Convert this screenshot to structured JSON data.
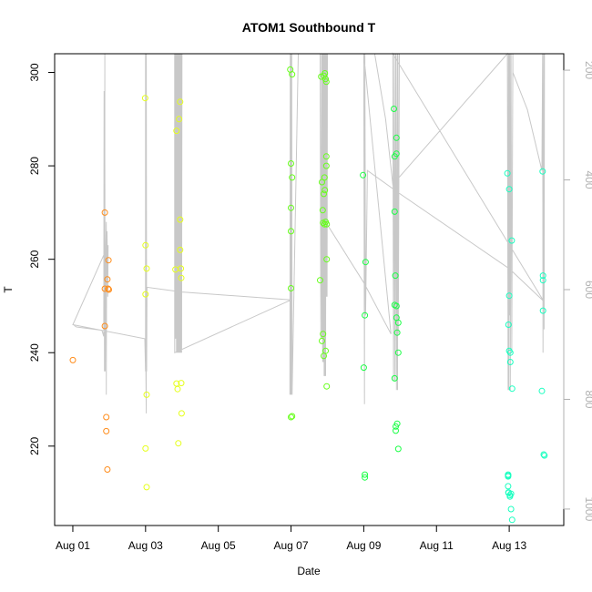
{
  "chart_data": {
    "type": "scatter",
    "title": "ATOM1 Southbound T",
    "xlabel": "Date",
    "ylabel": "T",
    "x_unit": "day",
    "x_reference_label": "Aug 01",
    "xlim": [
      -0.5,
      13.5
    ],
    "ylim": [
      203,
      304
    ],
    "x_ticks": [
      {
        "value": 0,
        "label": "Aug 01"
      },
      {
        "value": 2,
        "label": "Aug 03"
      },
      {
        "value": 4,
        "label": "Aug 05"
      },
      {
        "value": 6,
        "label": "Aug 07"
      },
      {
        "value": 8,
        "label": "Aug 09"
      },
      {
        "value": 10,
        "label": "Aug 11"
      },
      {
        "value": 12,
        "label": "Aug 13"
      }
    ],
    "y_ticks": [
      220,
      240,
      260,
      280,
      300
    ],
    "y2_lim": [
      1030,
      170
    ],
    "y2_ticks": [
      200,
      400,
      600,
      800,
      1000
    ],
    "y2_color": "#b0b0b0",
    "line_color": "#c8c8c8",
    "grid": false,
    "series": [
      {
        "color": "#ff8c1a",
        "points": [
          [
            0,
            238.4
          ],
          [
            0.88,
            270
          ],
          [
            0.88,
            253.7
          ],
          [
            0.88,
            245.7
          ],
          [
            0.92,
            226.2
          ],
          [
            0.92,
            223.2
          ],
          [
            0.95,
            215
          ],
          [
            0.95,
            255.7
          ],
          [
            0.97,
            253.7
          ],
          [
            0.98,
            259.8
          ],
          [
            0.99,
            253.5
          ]
        ]
      },
      {
        "color": "#e6ff1a",
        "points": [
          [
            1.99,
            294.5
          ],
          [
            2.0,
            263
          ],
          [
            2.0,
            252.5
          ],
          [
            2.03,
            258
          ],
          [
            2.03,
            231
          ],
          [
            2.0,
            219.5
          ],
          [
            2.03,
            211.2
          ],
          [
            2.82,
            257.8
          ],
          [
            2.85,
            287.5
          ],
          [
            2.85,
            233.4
          ],
          [
            2.88,
            232.2
          ],
          [
            2.9,
            220.6
          ],
          [
            2.92,
            290
          ],
          [
            2.95,
            293.7
          ],
          [
            2.95,
            268.5
          ],
          [
            2.95,
            262
          ],
          [
            2.97,
            258
          ],
          [
            2.98,
            256
          ],
          [
            2.98,
            233.5
          ],
          [
            2.99,
            227
          ]
        ]
      },
      {
        "color": "#66ff1a",
        "points": [
          [
            5.98,
            300.6
          ],
          [
            6.0,
            280.5
          ],
          [
            6.0,
            271
          ],
          [
            6.0,
            266
          ],
          [
            6.0,
            253.8
          ],
          [
            6.03,
            299.6
          ],
          [
            6.03,
            277.5
          ],
          [
            6.03,
            226.4
          ],
          [
            6.0,
            226.2
          ],
          [
            6.8,
            255.5
          ],
          [
            6.83,
            299.1
          ],
          [
            6.85,
            276.5
          ],
          [
            6.85,
            242.5
          ],
          [
            6.87,
            270.5
          ],
          [
            6.88,
            244
          ],
          [
            6.88,
            267.8
          ],
          [
            6.9,
            274
          ],
          [
            6.9,
            239.3
          ],
          [
            6.9,
            299.3
          ],
          [
            6.92,
            277.5
          ],
          [
            6.92,
            267.5
          ],
          [
            6.93,
            299.8
          ],
          [
            6.93,
            274.8
          ],
          [
            6.95,
            298.6
          ],
          [
            6.95,
            268
          ],
          [
            6.95,
            240.4
          ],
          [
            6.97,
            298
          ],
          [
            6.97,
            282
          ],
          [
            6.97,
            280
          ],
          [
            6.98,
            267.5
          ],
          [
            6.98,
            260
          ],
          [
            6.98,
            232.8
          ]
        ]
      },
      {
        "color": "#1aff45",
        "points": [
          [
            7.98,
            278
          ],
          [
            8.0,
            236.8
          ],
          [
            8.03,
            248
          ],
          [
            8.03,
            213.9
          ],
          [
            8.03,
            213.3
          ],
          [
            8.05,
            259.4
          ],
          [
            8.83,
            292.2
          ],
          [
            8.85,
            282
          ],
          [
            8.85,
            270.2
          ],
          [
            8.87,
            256.5
          ],
          [
            8.85,
            250.2
          ],
          [
            8.85,
            234.5
          ],
          [
            8.9,
            286
          ],
          [
            8.9,
            282.6
          ],
          [
            8.9,
            250
          ],
          [
            8.9,
            247.5
          ],
          [
            8.92,
            244.3
          ],
          [
            8.88,
            224.2
          ],
          [
            8.88,
            223.3
          ],
          [
            8.92,
            224.8
          ],
          [
            8.95,
            246.4
          ],
          [
            8.95,
            240
          ],
          [
            8.95,
            219.4
          ]
        ]
      },
      {
        "color": "#1affc0",
        "points": [
          [
            11.95,
            278.4
          ],
          [
            11.97,
            213.7
          ],
          [
            11.97,
            213.5
          ],
          [
            11.97,
            211.4
          ],
          [
            11.98,
            210.1
          ],
          [
            11.98,
            210
          ],
          [
            11.98,
            246
          ],
          [
            12.0,
            275
          ],
          [
            12.0,
            252.2
          ],
          [
            12.0,
            240.4
          ],
          [
            12.02,
            209.5
          ],
          [
            12.02,
            209.2
          ],
          [
            12.03,
            240
          ],
          [
            12.03,
            238
          ],
          [
            12.05,
            209.8
          ],
          [
            12.05,
            206.5
          ],
          [
            12.07,
            264
          ],
          [
            12.08,
            204.2
          ],
          [
            12.08,
            232.3
          ],
          [
            11.97,
            213.9
          ],
          [
            12.9,
            231.8
          ],
          [
            12.92,
            278.8
          ],
          [
            12.93,
            256.5
          ],
          [
            12.93,
            255.5
          ],
          [
            12.93,
            249
          ],
          [
            12.95,
            218.2
          ],
          [
            12.97,
            218
          ]
        ]
      }
    ],
    "line_path": [
      [
        0.0,
        246
      ],
      [
        0.1,
        245.5
      ],
      [
        0.8,
        244.8
      ],
      [
        0.85,
        243.5
      ],
      [
        0.86,
        296
      ],
      [
        0.87,
        236
      ],
      [
        0.88,
        304
      ],
      [
        0.88,
        282
      ],
      [
        0.89,
        236
      ],
      [
        0.9,
        252
      ],
      [
        0.91,
        263
      ],
      [
        0.92,
        268
      ],
      [
        0.92,
        231
      ],
      [
        0.93,
        262
      ],
      [
        0.94,
        266
      ],
      [
        0.95,
        260
      ],
      [
        0.96,
        252
      ],
      [
        0.97,
        263
      ],
      [
        0.0,
        246
      ],
      [
        1.98,
        243
      ],
      [
        2.0,
        236
      ],
      [
        2.0,
        304
      ],
      [
        2.01,
        236
      ],
      [
        2.02,
        227
      ],
      [
        2.02,
        304
      ],
      [
        2.03,
        236
      ],
      [
        2.04,
        254
      ],
      [
        3.0,
        253
      ],
      [
        6.0,
        251.3
      ],
      [
        2.8,
        240
      ],
      [
        2.8,
        304
      ],
      [
        2.81,
        243
      ],
      [
        2.82,
        304
      ],
      [
        2.83,
        243
      ],
      [
        2.84,
        304
      ],
      [
        2.85,
        240
      ],
      [
        2.86,
        304
      ],
      [
        2.87,
        240
      ],
      [
        2.88,
        304
      ],
      [
        2.89,
        240
      ],
      [
        2.9,
        304
      ],
      [
        2.91,
        240
      ],
      [
        2.92,
        304
      ],
      [
        2.93,
        240
      ],
      [
        2.94,
        304
      ],
      [
        2.95,
        240
      ],
      [
        2.96,
        304
      ],
      [
        2.97,
        240
      ],
      [
        2.98,
        304
      ],
      [
        2.99,
        240
      ],
      [
        3.0,
        304
      ],
      [
        6.0,
        304
      ],
      [
        5.97,
        231
      ],
      [
        5.98,
        304
      ],
      [
        5.99,
        231
      ],
      [
        6.0,
        304
      ],
      [
        6.01,
        231
      ],
      [
        6.02,
        304
      ],
      [
        6.03,
        231
      ],
      [
        6.2,
        304
      ],
      [
        6.5,
        304
      ],
      [
        6.8,
        304
      ],
      [
        6.82,
        243
      ],
      [
        6.84,
        304
      ],
      [
        6.85,
        243
      ],
      [
        6.86,
        304
      ],
      [
        6.87,
        238
      ],
      [
        6.88,
        304
      ],
      [
        6.89,
        238
      ],
      [
        6.9,
        304
      ],
      [
        6.91,
        235
      ],
      [
        6.92,
        304
      ],
      [
        6.93,
        235
      ],
      [
        6.94,
        304
      ],
      [
        6.95,
        235
      ],
      [
        6.96,
        304
      ],
      [
        6.97,
        252
      ],
      [
        6.98,
        304
      ],
      [
        6.99,
        252
      ],
      [
        7.0,
        304
      ],
      [
        6.9,
        270
      ],
      [
        6.95,
        268
      ],
      [
        8.0,
        255
      ],
      [
        8.75,
        244
      ],
      [
        8.0,
        304
      ],
      [
        8.02,
        229
      ],
      [
        8.03,
        304
      ],
      [
        8.05,
        248
      ],
      [
        8.1,
        279
      ],
      [
        9.0,
        274
      ],
      [
        12.0,
        258
      ],
      [
        12.95,
        251
      ],
      [
        8.8,
        304
      ],
      [
        8.82,
        234
      ],
      [
        8.84,
        304
      ],
      [
        8.86,
        234
      ],
      [
        8.88,
        304
      ],
      [
        8.9,
        232
      ],
      [
        8.92,
        304
      ],
      [
        8.93,
        232
      ],
      [
        8.94,
        304
      ],
      [
        8.95,
        244
      ],
      [
        8.98,
        304
      ],
      [
        8.3,
        304
      ],
      [
        8.6,
        290
      ],
      [
        8.8,
        276
      ],
      [
        11.95,
        304
      ],
      [
        11.97,
        232
      ],
      [
        11.98,
        304
      ],
      [
        11.99,
        232
      ],
      [
        12.0,
        304
      ],
      [
        12.01,
        248
      ],
      [
        12.02,
        304
      ],
      [
        12.03,
        232
      ],
      [
        12.05,
        304
      ],
      [
        12.07,
        240
      ],
      [
        12.1,
        304
      ],
      [
        12.1,
        300
      ],
      [
        12.5,
        292
      ],
      [
        12.9,
        279
      ],
      [
        12.92,
        304
      ],
      [
        12.93,
        240
      ],
      [
        12.95,
        304
      ],
      [
        12.96,
        245
      ],
      [
        12.97,
        304
      ]
    ]
  }
}
